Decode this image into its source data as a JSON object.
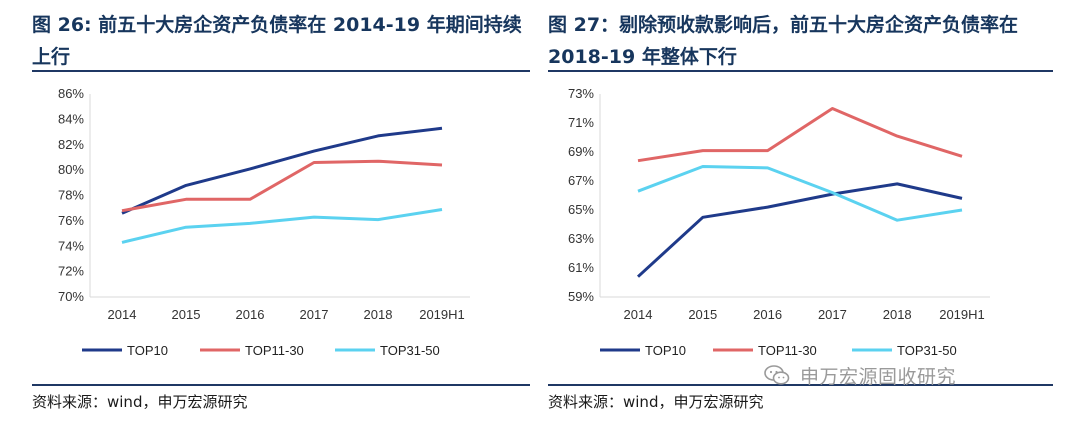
{
  "left": {
    "title": "图 26: 前五十大房企资产负债率在 2014-19 年期间持续上行",
    "source": "资料来源：wind，申万宏源研究"
  },
  "right": {
    "title": "图  27：剔除预收款影响后，前五十大房企资产负债率在 2018-19 年整体下行",
    "source": "资料来源：wind，申万宏源研究"
  },
  "watermark": {
    "text": "申万宏源固收研究",
    "icon": "wechat-icon"
  },
  "colors": {
    "title": "#17365d",
    "rule": "#1f3864",
    "top10": "#1f3a8a",
    "top11_30": "#e06666",
    "top31_50": "#5bd2f0",
    "axis": "#d9d9d9"
  },
  "chart_data": [
    {
      "type": "line",
      "categories": [
        "2014",
        "2015",
        "2016",
        "2017",
        "2018",
        "2019H1"
      ],
      "series": [
        {
          "name": "TOP10",
          "values": [
            76.6,
            78.8,
            80.1,
            81.5,
            82.7,
            83.3
          ]
        },
        {
          "name": "TOP11-30",
          "values": [
            76.8,
            77.7,
            77.7,
            80.6,
            80.7,
            80.4
          ]
        },
        {
          "name": "TOP31-50",
          "values": [
            74.3,
            75.5,
            75.8,
            76.3,
            76.1,
            76.9
          ]
        }
      ],
      "ylim": [
        70,
        86
      ],
      "yticks": [
        "70%",
        "72%",
        "74%",
        "76%",
        "78%",
        "80%",
        "82%",
        "84%",
        "86%"
      ],
      "grid": false,
      "legend": "bottom"
    },
    {
      "type": "line",
      "categories": [
        "2014",
        "2015",
        "2016",
        "2017",
        "2018",
        "2019H1"
      ],
      "series": [
        {
          "name": "TOP10",
          "values": [
            60.4,
            64.5,
            65.2,
            66.1,
            66.8,
            65.8
          ]
        },
        {
          "name": "TOP11-30",
          "values": [
            68.4,
            69.1,
            69.1,
            72.0,
            70.1,
            68.7
          ]
        },
        {
          "name": "TOP31-50",
          "values": [
            66.3,
            68.0,
            67.9,
            66.2,
            64.3,
            65.0
          ]
        }
      ],
      "ylim": [
        59,
        73
      ],
      "yticks": [
        "59%",
        "61%",
        "63%",
        "65%",
        "67%",
        "69%",
        "71%",
        "73%"
      ],
      "grid": false,
      "legend": "bottom"
    }
  ]
}
